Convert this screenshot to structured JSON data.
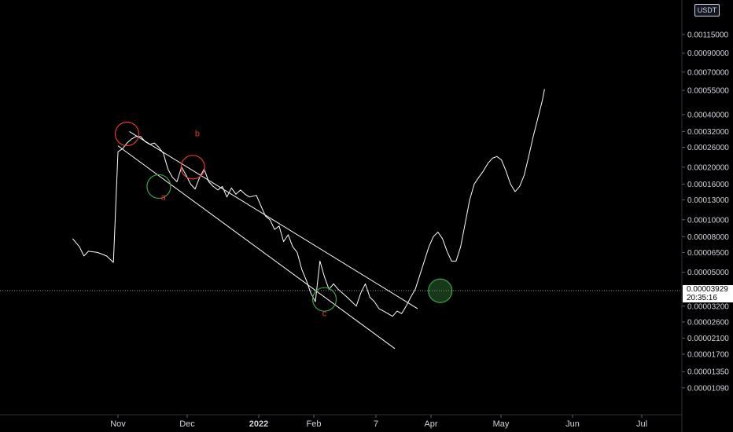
{
  "chart_data": {
    "type": "line",
    "quote_currency": "USDT",
    "price_scale": "log",
    "current_price": "0.00003929",
    "countdown": "20:35:16",
    "y_ticks": [
      "0.00115000",
      "0.00090000",
      "0.00070000",
      "0.00055000",
      "0.00040000",
      "0.00032000",
      "0.00026000",
      "0.00020000",
      "0.00016000",
      "0.00013000",
      "0.00010000",
      "0.00008000",
      "0.00006500",
      "0.00005000",
      "0.00003200",
      "0.00002600",
      "0.00002100",
      "0.00001700",
      "0.00001350",
      "0.00001090"
    ],
    "x_ticks": [
      {
        "label": "Nov",
        "bold": false
      },
      {
        "label": "Dec",
        "bold": false
      },
      {
        "label": "2022",
        "bold": true
      },
      {
        "label": "Feb",
        "bold": false
      },
      {
        "label": "7",
        "bold": false
      },
      {
        "label": "Apr",
        "bold": false
      },
      {
        "label": "May",
        "bold": false
      },
      {
        "label": "Jun",
        "bold": false
      },
      {
        "label": "Jul",
        "bold": false
      }
    ],
    "series": [
      {
        "values": [
          [
            "2021-10-12",
            7.8e-05
          ],
          [
            "2021-10-15",
            7e-05
          ],
          [
            "2021-10-17",
            6.2e-05
          ],
          [
            "2021-10-19",
            6.6e-05
          ],
          [
            "2021-10-23",
            6.5e-05
          ],
          [
            "2021-10-27",
            6.2e-05
          ],
          [
            "2021-10-30",
            5.7e-05
          ],
          [
            "2021-11-01",
            0.000245
          ],
          [
            "2021-11-03",
            0.000255
          ],
          [
            "2021-11-05",
            0.000275
          ],
          [
            "2021-11-07",
            0.00029
          ],
          [
            "2021-11-09",
            0.0003
          ],
          [
            "2021-11-11",
            0.0003
          ],
          [
            "2021-11-13",
            0.00028
          ],
          [
            "2021-11-15",
            0.00027
          ],
          [
            "2021-11-17",
            0.000275
          ],
          [
            "2021-11-19",
            0.00026
          ],
          [
            "2021-11-21",
            0.00024
          ],
          [
            "2021-11-23",
            0.000195
          ],
          [
            "2021-11-25",
            0.000175
          ],
          [
            "2021-11-27",
            0.000165
          ],
          [
            "2021-11-29",
            0.0002
          ],
          [
            "2021-12-01",
            0.00018
          ],
          [
            "2021-12-03",
            0.00016
          ],
          [
            "2021-12-05",
            0.00015
          ],
          [
            "2021-12-07",
            0.000175
          ],
          [
            "2021-12-09",
            0.000195
          ],
          [
            "2021-12-11",
            0.000165
          ],
          [
            "2021-12-13",
            0.000155
          ],
          [
            "2021-12-15",
            0.000148
          ],
          [
            "2021-12-17",
            0.000155
          ],
          [
            "2021-12-19",
            0.000135
          ],
          [
            "2021-12-21",
            0.000152
          ],
          [
            "2021-12-23",
            0.00014
          ],
          [
            "2021-12-25",
            0.000148
          ],
          [
            "2021-12-27",
            0.00014
          ],
          [
            "2021-12-29",
            0.000135
          ],
          [
            "2022-01-01",
            0.000138
          ],
          [
            "2022-01-03",
            0.00012
          ],
          [
            "2022-01-05",
            0.000105
          ],
          [
            "2022-01-07",
            0.0001
          ],
          [
            "2022-01-09",
            8.8e-05
          ],
          [
            "2022-01-11",
            9.2e-05
          ],
          [
            "2022-01-13",
            7.5e-05
          ],
          [
            "2022-01-15",
            8.2e-05
          ],
          [
            "2022-01-17",
            7e-05
          ],
          [
            "2022-01-19",
            6.5e-05
          ],
          [
            "2022-01-21",
            5.2e-05
          ],
          [
            "2022-01-23",
            4.5e-05
          ],
          [
            "2022-01-25",
            3.8e-05
          ],
          [
            "2022-01-27",
            3.4e-05
          ],
          [
            "2022-01-29",
            5.8e-05
          ],
          [
            "2022-01-31",
            4.7e-05
          ],
          [
            "2022-02-02",
            4e-05
          ],
          [
            "2022-02-04",
            4.3e-05
          ],
          [
            "2022-02-06",
            4e-05
          ],
          [
            "2022-02-08",
            3.8e-05
          ],
          [
            "2022-02-10",
            3.6e-05
          ],
          [
            "2022-02-12",
            3.4e-05
          ],
          [
            "2022-02-14",
            3.2e-05
          ],
          [
            "2022-02-16",
            3.8e-05
          ],
          [
            "2022-02-18",
            4.3e-05
          ],
          [
            "2022-02-20",
            3.6e-05
          ],
          [
            "2022-02-22",
            3.4e-05
          ],
          [
            "2022-02-24",
            3.1e-05
          ],
          [
            "2022-02-26",
            3e-05
          ],
          [
            "2022-02-28",
            2.9e-05
          ],
          [
            "2022-03-02",
            2.8e-05
          ],
          [
            "2022-03-04",
            3e-05
          ],
          [
            "2022-03-06",
            2.9e-05
          ],
          [
            "2022-03-08",
            3.2e-05
          ],
          [
            "2022-03-10",
            3.6e-05
          ],
          [
            "2022-03-12",
            4e-05
          ],
          [
            "2022-03-14",
            4.8e-05
          ],
          [
            "2022-03-16",
            5.8e-05
          ],
          [
            "2022-03-18",
            7e-05
          ],
          [
            "2022-03-20",
            8e-05
          ],
          [
            "2022-03-22",
            8.5e-05
          ],
          [
            "2022-03-24",
            7.8e-05
          ],
          [
            "2022-03-26",
            6.6e-05
          ],
          [
            "2022-03-28",
            5.8e-05
          ],
          [
            "2022-03-30",
            5.8e-05
          ],
          [
            "2022-04-01",
            7e-05
          ],
          [
            "2022-04-03",
            9.5e-05
          ],
          [
            "2022-04-05",
            0.00013
          ],
          [
            "2022-04-07",
            0.00016
          ],
          [
            "2022-04-09",
            0.000175
          ],
          [
            "2022-04-11",
            0.00019
          ],
          [
            "2022-04-13",
            0.00021
          ],
          [
            "2022-04-15",
            0.000225
          ],
          [
            "2022-04-17",
            0.00023
          ],
          [
            "2022-04-19",
            0.00022
          ],
          [
            "2022-04-21",
            0.00019
          ],
          [
            "2022-04-23",
            0.00016
          ],
          [
            "2022-04-25",
            0.000145
          ],
          [
            "2022-04-27",
            0.000155
          ],
          [
            "2022-04-29",
            0.00018
          ],
          [
            "2022-05-01",
            0.00023
          ],
          [
            "2022-05-03",
            0.0003
          ],
          [
            "2022-05-05",
            0.00038
          ],
          [
            "2022-05-07",
            0.00048
          ],
          [
            "2022-05-08",
            0.00056
          ]
        ]
      }
    ],
    "trendlines": [
      {
        "from": [
          "2021-11-06",
          0.00032
        ],
        "to": [
          "2022-03-13",
          3.1e-05
        ],
        "color": "#ffffff"
      },
      {
        "from": [
          "2021-11-01",
          0.000265
        ],
        "to": [
          "2022-03-03",
          1.83e-05
        ],
        "color": "#ffffff"
      }
    ],
    "circles": [
      {
        "at": [
          "2021-11-05",
          0.00031
        ],
        "color": "#e53935"
      },
      {
        "at": [
          "2021-12-04",
          0.0002
        ],
        "color": "#e53935"
      },
      {
        "at": [
          "2021-11-19",
          0.000155
        ],
        "color": "#43a047"
      },
      {
        "at": [
          "2022-01-31",
          3.5e-05
        ],
        "color": "#43a047"
      },
      {
        "at": [
          "2022-03-23",
          3.92e-05
        ],
        "color": "#43a047"
      }
    ],
    "wave_labels": [
      {
        "text": "a",
        "at": [
          "2021-11-21",
          0.00013
        ],
        "color": "#e53935"
      },
      {
        "text": "b",
        "at": [
          "2021-12-06",
          0.0003
        ],
        "color": "#e53935"
      },
      {
        "text": "c",
        "at": [
          "2022-01-31",
          2.8e-05
        ],
        "color": "#e53935"
      }
    ],
    "colors": {
      "background": "#000000",
      "line": "#ffffff",
      "red": "#e53935",
      "green": "#43a047",
      "axis_text": "#d1d4dc"
    }
  }
}
